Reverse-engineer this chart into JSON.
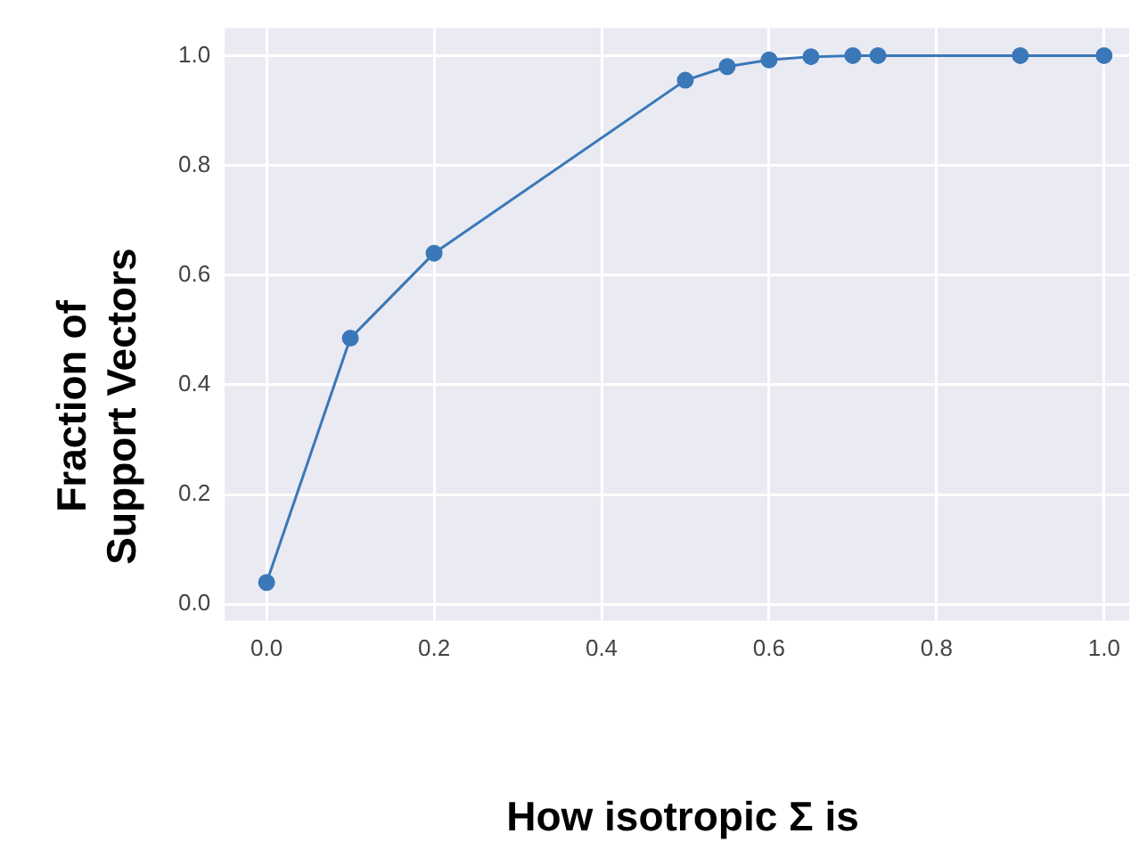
{
  "chart_data": {
    "type": "line",
    "xlabel": "How isotropic Σ is",
    "ylabel": "Fraction of Support Vectors",
    "x": [
      0,
      0.1,
      0.2,
      0.5,
      0.55,
      0.6,
      0.65,
      0.7,
      0.73,
      0.9,
      1.0
    ],
    "series": [
      {
        "color": "#3a78b8",
        "values": [
          0.04,
          0.485,
          0.64,
          0.955,
          0.98,
          0.992,
          0.998,
          1.0,
          1.0,
          1.0,
          1.0
        ]
      }
    ],
    "xlim": [
      -0.05,
      1.03
    ],
    "ylim": [
      -0.03,
      1.05
    ],
    "xticks": [
      {
        "value": 0,
        "label": "0.0"
      },
      {
        "value": 0.2,
        "label": "0.2"
      },
      {
        "value": 0.4,
        "label": "0.4"
      },
      {
        "value": 0.6,
        "label": "0.6"
      },
      {
        "value": 0.8,
        "label": "0.8"
      },
      {
        "value": 1,
        "label": "1.0"
      }
    ],
    "yticks": [
      {
        "value": 0,
        "label": "0.0"
      },
      {
        "value": 0.2,
        "label": "0.2"
      },
      {
        "value": 0.4,
        "label": "0.4"
      },
      {
        "value": 0.6,
        "label": "0.6"
      },
      {
        "value": 0.8,
        "label": "0.8"
      },
      {
        "value": 1,
        "label": "1.0"
      }
    ],
    "grid": true,
    "marker": "circle",
    "line_style": "solid",
    "legend": false
  }
}
